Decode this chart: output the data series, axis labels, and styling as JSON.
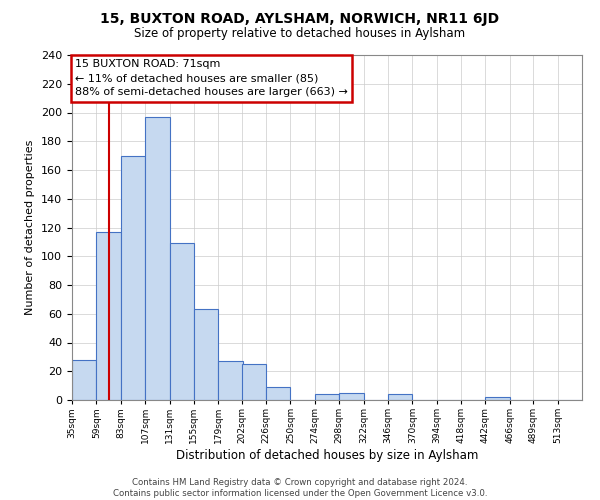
{
  "title": "15, BUXTON ROAD, AYLSHAM, NORWICH, NR11 6JD",
  "subtitle": "Size of property relative to detached houses in Aylsham",
  "xlabel": "Distribution of detached houses by size in Aylsham",
  "ylabel": "Number of detached properties",
  "bin_labels": [
    "35sqm",
    "59sqm",
    "83sqm",
    "107sqm",
    "131sqm",
    "155sqm",
    "179sqm",
    "202sqm",
    "226sqm",
    "250sqm",
    "274sqm",
    "298sqm",
    "322sqm",
    "346sqm",
    "370sqm",
    "394sqm",
    "418sqm",
    "442sqm",
    "466sqm",
    "489sqm",
    "513sqm"
  ],
  "bar_heights": [
    28,
    117,
    170,
    197,
    109,
    63,
    27,
    25,
    9,
    0,
    4,
    5,
    0,
    4,
    0,
    0,
    0,
    2,
    0,
    0,
    0
  ],
  "bar_color": "#c6d9f0",
  "bar_edge_color": "#4472c4",
  "property_line_x": 71,
  "bin_edges": [
    35,
    59,
    83,
    107,
    131,
    155,
    179,
    202,
    226,
    250,
    274,
    298,
    322,
    346,
    370,
    394,
    418,
    442,
    466,
    489,
    513
  ],
  "bin_width": 24,
  "annotation_box_text": "15 BUXTON ROAD: 71sqm\n← 11% of detached houses are smaller (85)\n88% of semi-detached houses are larger (663) →",
  "annotation_box_color": "#ffffff",
  "annotation_box_edge_color": "#cc0000",
  "vline_color": "#cc0000",
  "ylim": [
    0,
    240
  ],
  "yticks": [
    0,
    20,
    40,
    60,
    80,
    100,
    120,
    140,
    160,
    180,
    200,
    220,
    240
  ],
  "footer_line1": "Contains HM Land Registry data © Crown copyright and database right 2024.",
  "footer_line2": "Contains public sector information licensed under the Open Government Licence v3.0.",
  "background_color": "#ffffff",
  "grid_color": "#cccccc"
}
